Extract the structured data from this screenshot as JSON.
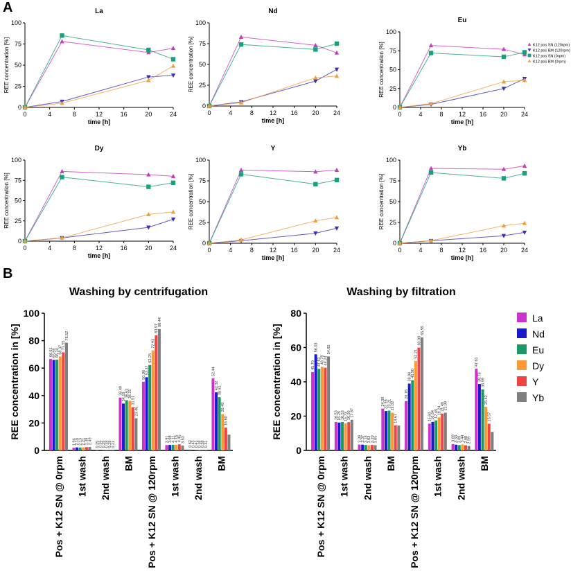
{
  "figure": {
    "panel_a_label": "A",
    "panel_b_label": "B"
  },
  "colors": {
    "La": "#cc33cc",
    "Nd": "#1a1acc",
    "Eu": "#1a9966",
    "Dy": "#ff9933",
    "Y": "#ee4444",
    "Yb": "#7f7f7f",
    "sn120": "#c040c0",
    "bm120": "#4030b0",
    "sn0": "#1aa07a",
    "bm0": "#f0a040"
  },
  "chart_data": [
    {
      "type": "line",
      "title": "La",
      "xlabel": "time [h]",
      "ylabel": "REE concentration [%]",
      "x": [
        0,
        6,
        20,
        24
      ],
      "xlim": [
        0,
        24
      ],
      "ylim": [
        0,
        100
      ],
      "xticks": [
        0,
        4,
        8,
        12,
        16,
        20,
        24
      ],
      "yticks": [
        0,
        25,
        50,
        75,
        100
      ],
      "series": [
        {
          "name": "K12 pos SN (120rpm)",
          "marker": "triangle-up",
          "values": [
            0,
            78,
            65,
            70
          ]
        },
        {
          "name": "K12 pos BM (120rpm)",
          "marker": "triangle-down",
          "values": [
            0,
            7,
            36,
            38
          ]
        },
        {
          "name": "K12 pos SN (0rpm)",
          "marker": "square",
          "values": [
            0,
            85,
            68,
            57
          ]
        },
        {
          "name": "K12 pos BM (0rpm)",
          "marker": "triangle-up",
          "values": [
            0,
            5,
            32,
            49
          ]
        }
      ]
    },
    {
      "type": "line",
      "title": "Nd",
      "xlabel": "time [h]",
      "ylabel": "REE concentration [%]",
      "x": [
        0,
        6,
        20,
        24
      ],
      "xlim": [
        0,
        24
      ],
      "ylim": [
        0,
        100
      ],
      "xticks": [
        0,
        4,
        8,
        12,
        16,
        20,
        24
      ],
      "yticks": [
        0,
        25,
        50,
        75,
        100
      ],
      "series": [
        {
          "name": "K12 pos SN (120rpm)",
          "marker": "triangle-up",
          "values": [
            0,
            83,
            73,
            64
          ]
        },
        {
          "name": "K12 pos BM (120rpm)",
          "marker": "triangle-down",
          "values": [
            0,
            5,
            30,
            44
          ]
        },
        {
          "name": "K12 pos SN (0rpm)",
          "marker": "square",
          "values": [
            0,
            74,
            68,
            75
          ]
        },
        {
          "name": "K12 pos BM (0rpm)",
          "marker": "triangle-up",
          "values": [
            0,
            4,
            34,
            36
          ]
        }
      ]
    },
    {
      "type": "line",
      "title": "Eu",
      "xlabel": "time [h]",
      "ylabel": "REE concentration [%]",
      "x": [
        0,
        6,
        20,
        24
      ],
      "xlim": [
        0,
        24
      ],
      "ylim": [
        0,
        100
      ],
      "xticks": [
        0,
        4,
        8,
        12,
        16,
        20,
        24
      ],
      "yticks": [
        0,
        25,
        50,
        75,
        100
      ],
      "legend": "top-right",
      "series": [
        {
          "name": "K12 pos SN (120rpm)",
          "marker": "triangle-up",
          "values": [
            0,
            82,
            77,
            70
          ]
        },
        {
          "name": "K12 pos BM (120rpm)",
          "marker": "triangle-down",
          "values": [
            0,
            4,
            25,
            38
          ]
        },
        {
          "name": "K12 pos SN (0rpm)",
          "marker": "square",
          "values": [
            0,
            72,
            67,
            73
          ]
        },
        {
          "name": "K12 pos BM (0rpm)",
          "marker": "triangle-up",
          "values": [
            0,
            5,
            34,
            36
          ]
        }
      ]
    },
    {
      "type": "line",
      "title": "Dy",
      "xlabel": "time [h]",
      "ylabel": "REE concentration [%]",
      "x": [
        0,
        6,
        20,
        24
      ],
      "xlim": [
        0,
        24
      ],
      "ylim": [
        0,
        100
      ],
      "xticks": [
        0,
        4,
        8,
        12,
        16,
        20,
        24
      ],
      "yticks": [
        0,
        25,
        50,
        75,
        100
      ],
      "series": [
        {
          "name": "K12 pos SN (120rpm)",
          "marker": "triangle-up",
          "values": [
            0,
            86,
            82,
            80
          ]
        },
        {
          "name": "K12 pos BM (120rpm)",
          "marker": "triangle-down",
          "values": [
            0,
            4,
            17,
            27
          ]
        },
        {
          "name": "K12 pos SN (0rpm)",
          "marker": "square",
          "values": [
            0,
            79,
            67,
            72
          ]
        },
        {
          "name": "K12 pos BM (0rpm)",
          "marker": "triangle-up",
          "values": [
            0,
            4,
            33,
            36
          ]
        }
      ]
    },
    {
      "type": "line",
      "title": "Y",
      "xlabel": "time [h]",
      "ylabel": "REE concentration [%]",
      "x": [
        0,
        6,
        20,
        24
      ],
      "xlim": [
        0,
        24
      ],
      "ylim": [
        0,
        100
      ],
      "xticks": [
        0,
        4,
        8,
        12,
        16,
        20,
        24
      ],
      "yticks": [
        0,
        25,
        50,
        75,
        100
      ],
      "series": [
        {
          "name": "K12 pos SN (120rpm)",
          "marker": "triangle-up",
          "values": [
            0,
            88,
            86,
            88
          ]
        },
        {
          "name": "K12 pos BM (120rpm)",
          "marker": "triangle-down",
          "values": [
            0,
            3,
            12,
            18
          ]
        },
        {
          "name": "K12 pos SN (0rpm)",
          "marker": "square",
          "values": [
            0,
            83,
            71,
            76
          ]
        },
        {
          "name": "K12 pos BM (0rpm)",
          "marker": "triangle-up",
          "values": [
            0,
            4,
            27,
            31
          ]
        }
      ]
    },
    {
      "type": "line",
      "title": "Yb",
      "xlabel": "time [h]",
      "ylabel": "REE concentration [%]",
      "x": [
        0,
        6,
        20,
        24
      ],
      "xlim": [
        0,
        24
      ],
      "ylim": [
        0,
        100
      ],
      "xticks": [
        0,
        4,
        8,
        12,
        16,
        20,
        24
      ],
      "yticks": [
        0,
        25,
        50,
        75,
        100
      ],
      "series": [
        {
          "name": "K12 pos SN (120rpm)",
          "marker": "triangle-up",
          "values": [
            0,
            90,
            89,
            93
          ]
        },
        {
          "name": "K12 pos BM (120rpm)",
          "marker": "triangle-down",
          "values": [
            0,
            3,
            9,
            13
          ]
        },
        {
          "name": "K12 pos SN (0rpm)",
          "marker": "square",
          "values": [
            0,
            85,
            78,
            84
          ]
        },
        {
          "name": "K12 pos BM (0rpm)",
          "marker": "triangle-up",
          "values": [
            0,
            3,
            21,
            24
          ]
        }
      ]
    },
    {
      "type": "bar",
      "title": "Washing by centrifugation",
      "ylabel": "REE concentration in [%]",
      "ylim": [
        0,
        100
      ],
      "yticks": [
        0,
        20,
        40,
        60,
        80,
        100
      ],
      "categories": [
        "Pos + K12 SN @ 0rpm",
        "1st wash",
        "2nd wash",
        "BM",
        "Pos + K12 SN @ 120rpm",
        "1st wash",
        "2nd wash",
        "BM"
      ],
      "series": [
        {
          "name": "La",
          "values": [
            66.61,
            1.94,
            0.25,
            38.49,
            50.08,
            3.91,
            0.62,
            52.44
          ]
        },
        {
          "name": "Nd",
          "values": [
            65.98,
            2.19,
            0.36,
            34.18,
            53.37,
            3.98,
            0.45,
            42.32
          ]
        },
        {
          "name": "Eu",
          "values": [
            66.14,
            2.13,
            0.29,
            36.62,
            62.25,
            4.11,
            0.41,
            38.81
          ]
        },
        {
          "name": "Dy",
          "values": [
            68.37,
            2.21,
            0.38,
            36.21,
            72.93,
            4.15,
            0.38,
            26.49
          ]
        },
        {
          "name": "Y",
          "values": [
            71.55,
            2.39,
            0.28,
            31.51,
            83.97,
            4.45,
            0.38,
            16.6
          ]
        },
        {
          "name": "Yb",
          "values": [
            78.52,
            2.49,
            0.21,
            23.46,
            88.44,
            3.53,
            0.31,
            11.5
          ]
        }
      ],
      "data_labels": [
        [
          "66.61",
          "65.98",
          "66.14",
          "68.37",
          "71.55",
          "78.52"
        ],
        [
          "1.94",
          "2.19",
          "2.13",
          "2.21",
          "2.39",
          "2.49"
        ],
        [
          "0.25",
          "0.36",
          "0.29",
          "0.38",
          "0.28",
          "0.21"
        ],
        [
          "38.49",
          "34.18",
          "36.62",
          "36.21",
          "31.51",
          "23.46"
        ],
        [
          "50.08",
          "53.37",
          "62.25",
          "72.93",
          "83.97",
          "88.44"
        ],
        [
          "3.91",
          "3.98",
          "4.11",
          "4.15",
          "4.45",
          "3.53"
        ],
        [
          "0.62",
          "0.45",
          "0.41",
          "0.38",
          "0.38",
          "0.31"
        ],
        [
          "52.44",
          "42.32",
          "38.81",
          "26.49",
          "16.60",
          ""
        ]
      ]
    },
    {
      "type": "bar",
      "title": "Washing by filtration",
      "ylabel": "REE concentration in [%]",
      "ylim": [
        0,
        80
      ],
      "yticks": [
        0,
        20,
        40,
        60,
        80
      ],
      "legend": "right",
      "categories": [
        "Pos + K12 SN @ 0rpm",
        "1st wash",
        "2nd wash",
        "BM",
        "Pos + K12 SN @ 120rpm",
        "1st wash",
        "2nd wash",
        "BM"
      ],
      "series": [
        {
          "name": "La",
          "values": [
            45.7,
            16.53,
            3.39,
            24.39,
            28.76,
            15.6,
            3.69,
            47.61
          ]
        },
        {
          "name": "Nd",
          "values": [
            56.03,
            16.25,
            3.37,
            22.98,
            38.96,
            16.64,
            3.33,
            38.76
          ]
        },
        {
          "name": "Eu",
          "values": [
            47.61,
            16.53,
            3.18,
            23.21,
            40.9,
            17.49,
            3.09,
            35.59
          ]
        },
        {
          "name": "Dy",
          "values": [
            48.78,
            15.73,
            3.03,
            22.02,
            52.21,
            19.24,
            3.44,
            25.42
          ]
        },
        {
          "name": "Y",
          "values": [
            48.24,
            16.5,
            3.2,
            14.67,
            60.0,
            21.49,
            2.98,
            15.57
          ]
        },
        {
          "name": "Yb",
          "values": [
            54.82,
            17.87,
            3.05,
            14.5,
            65.95,
            21.99,
            2.59,
            10.8
          ]
        }
      ],
      "data_labels": [
        [
          "45.70",
          "56.03",
          "47.61",
          "48.78",
          "48.24",
          "54.82"
        ],
        [
          "16.53",
          "16.25",
          "16.53",
          "15.73",
          "16.50",
          "17.87"
        ],
        [
          "3.39",
          "3.37",
          "3.18",
          "3.03",
          "3.20",
          "3.05"
        ],
        [
          "24.39",
          "22.98",
          "23.21",
          "22.02",
          "14.67",
          ""
        ],
        [
          "28.76",
          "38.96",
          "40.90",
          "52.21",
          "60.00",
          "65.95"
        ],
        [
          "15.60",
          "16.64",
          "17.49",
          "19.24",
          "21.49",
          "21.99"
        ],
        [
          "3.69",
          "3.33",
          "3.09",
          "3.44",
          "2.98",
          "2.59"
        ],
        [
          "47.61",
          "38.76",
          "35.59",
          "25.42",
          "15.57",
          ""
        ]
      ]
    }
  ]
}
